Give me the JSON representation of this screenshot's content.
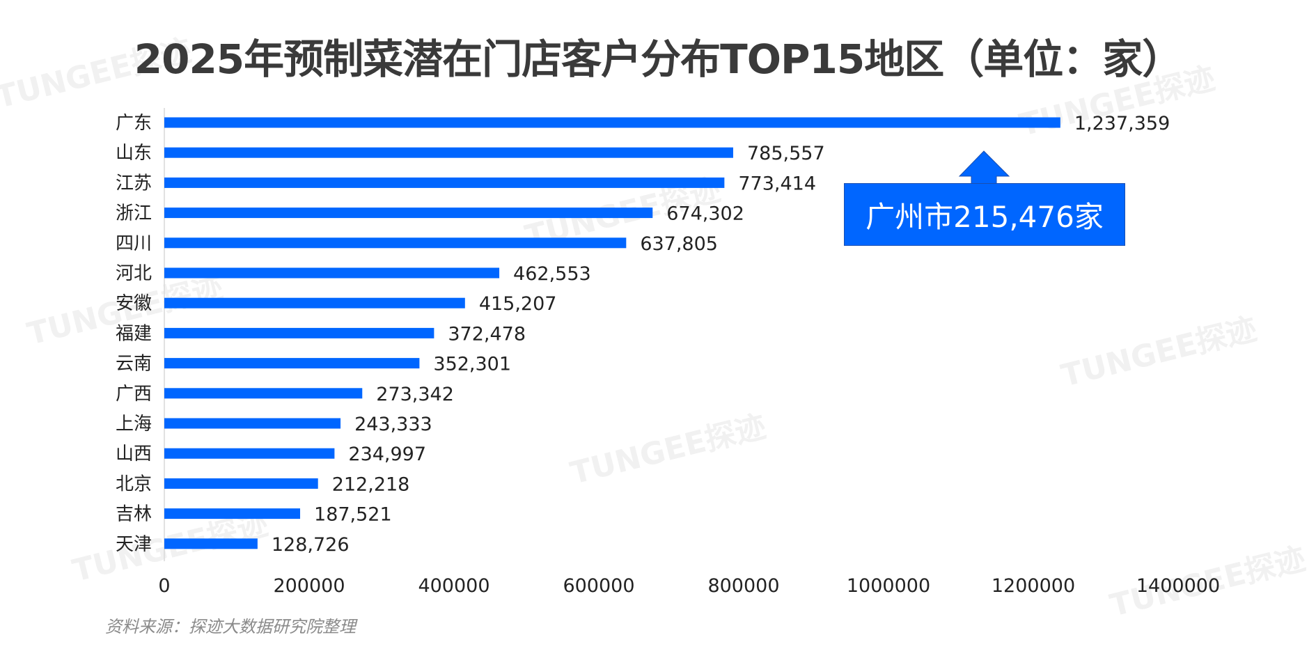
{
  "watermark": "TUNGEE探迹",
  "chart_data": {
    "type": "bar",
    "orientation": "horizontal",
    "title": "2025年预制菜潜在门店客户分布TOP15地区（单位：家）",
    "categories": [
      "广东",
      "山东",
      "江苏",
      "浙江",
      "四川",
      "河北",
      "安徽",
      "福建",
      "云南",
      "广西",
      "上海",
      "山西",
      "北京",
      "吉林",
      "天津"
    ],
    "values": [
      1237359,
      785557,
      773414,
      674302,
      637805,
      462553,
      415207,
      372478,
      352301,
      273342,
      243333,
      234997,
      212218,
      187521,
      128726
    ],
    "value_labels": [
      "1,237,359",
      "785,557",
      "773,414",
      "674,302",
      "637,805",
      "462,553",
      "415,207",
      "372,478",
      "352,301",
      "273,342",
      "243,333",
      "234,997",
      "212,218",
      "187,521",
      "128,726"
    ],
    "xlim": [
      0,
      1400000
    ],
    "xticks": [
      "0",
      "200000",
      "400000",
      "600000",
      "800000",
      "1000000",
      "1200000",
      "1400000"
    ],
    "xlabel": "",
    "ylabel": "",
    "grid": false,
    "bar_color": "#0066ff",
    "annotation": "广州市215,476家",
    "source": "资料来源：探迹大数据研究院整理"
  }
}
